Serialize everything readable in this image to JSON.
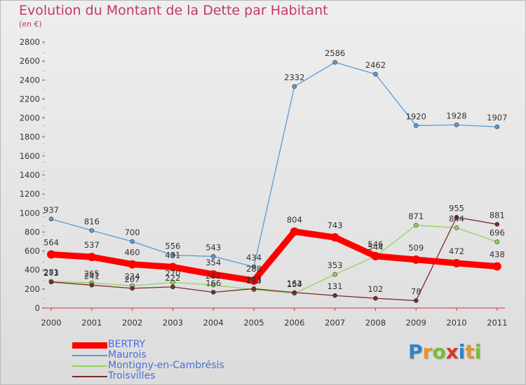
{
  "title": "Evolution du Montant de la Dette par Habitant",
  "subtitle": "(en €)",
  "logo": {
    "letters": [
      "P",
      "r",
      "o",
      "x",
      "i",
      "t",
      "i"
    ],
    "colors": [
      "#2e86c8",
      "#e8942a",
      "#7dbb3a",
      "#d9332b",
      "#2e86c8",
      "#e8942a",
      "#7dbb3a"
    ]
  },
  "chart_data": {
    "type": "line",
    "categories": [
      "2000",
      "2001",
      "2002",
      "2003",
      "2004",
      "2005",
      "2006",
      "2007",
      "2008",
      "2009",
      "2010",
      "2011"
    ],
    "yticks": [
      "0",
      "200",
      "400",
      "600",
      "800",
      "1000",
      "1200",
      "1400",
      "1600",
      "1800",
      "2000",
      "2200",
      "2400",
      "2600",
      "2800"
    ],
    "ylim": [
      0,
      2800
    ],
    "grid": false,
    "legend_position": "bottom-left",
    "series": [
      {
        "name": "BERTRY",
        "color": "#ff0000",
        "values": [
          564,
          537,
          460,
          431,
          354,
          288,
          804,
          743,
          546,
          509,
          472,
          438
        ]
      },
      {
        "name": "Maurois",
        "color": "#5b9bd5",
        "values": [
          937,
          816,
          700,
          556,
          543,
          434,
          2332,
          2586,
          2462,
          1920,
          1928,
          1907
        ]
      },
      {
        "name": "Montigny-en-Cambrésis",
        "color": "#93d35a",
        "values": [
          281,
          265,
          234,
          270,
          242,
          193,
          154,
          353,
          544,
          871,
          844,
          696
        ]
      },
      {
        "name": "Troisvilles",
        "color": "#7a2a2a",
        "values": [
          273,
          241,
          207,
          222,
          166,
          203,
          163,
          131,
          102,
          78,
          955,
          881
        ]
      }
    ]
  }
}
